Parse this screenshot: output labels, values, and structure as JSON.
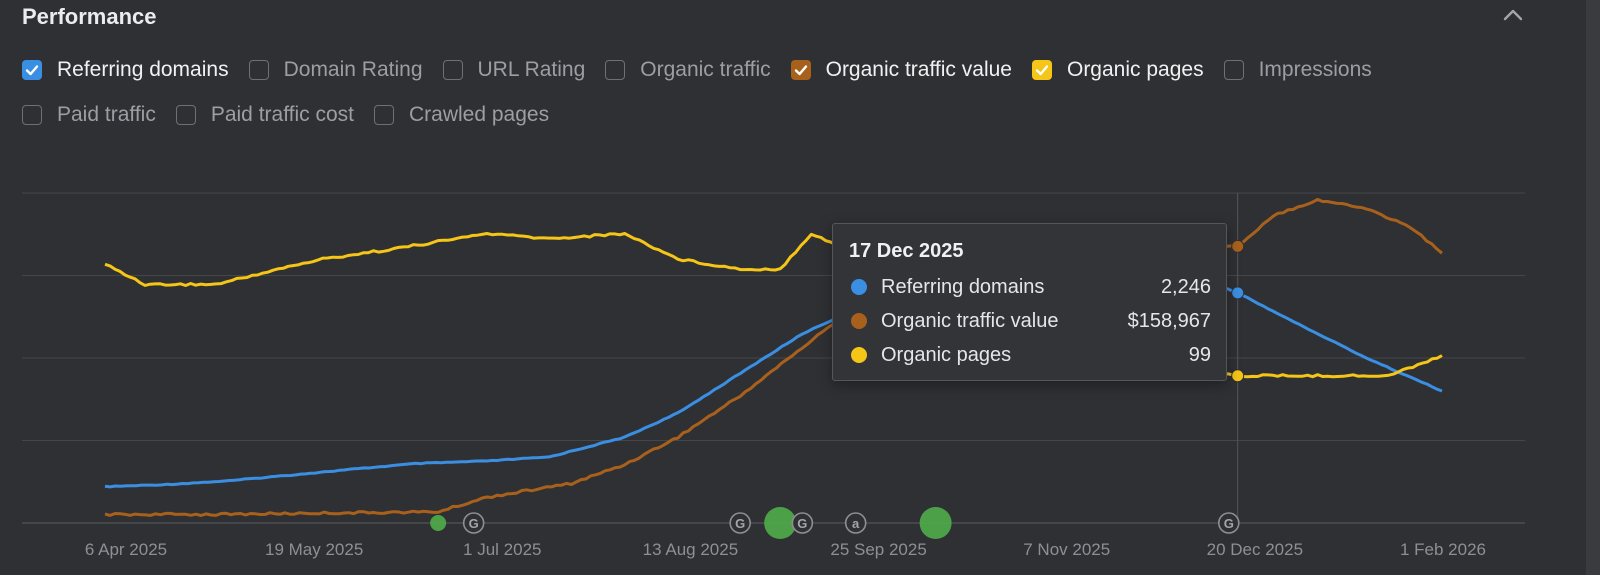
{
  "header": {
    "title": "Performance"
  },
  "icons": {
    "collapse": "chevron-up-icon",
    "check": "checkmark-icon",
    "google_update": "google-g-icon",
    "annotation": "at-sign-icon",
    "event": "green-dot-icon"
  },
  "metrics_row1": [
    {
      "label": "Referring domains",
      "checked": true,
      "color": "#3b8fe3"
    },
    {
      "label": "Domain Rating",
      "checked": false,
      "color": ""
    },
    {
      "label": "URL Rating",
      "checked": false,
      "color": ""
    },
    {
      "label": "Organic traffic",
      "checked": false,
      "color": ""
    },
    {
      "label": "Organic traffic value",
      "checked": true,
      "color": "#a8611c"
    },
    {
      "label": "Organic pages",
      "checked": true,
      "color": "#f5c518"
    },
    {
      "label": "Impressions",
      "checked": false,
      "color": ""
    }
  ],
  "metrics_row2": [
    {
      "label": "Paid traffic",
      "checked": false,
      "color": ""
    },
    {
      "label": "Paid traffic cost",
      "checked": false,
      "color": ""
    },
    {
      "label": "Crawled pages",
      "checked": false,
      "color": ""
    }
  ],
  "tooltip": {
    "date": "17 Dec 2025",
    "rows": [
      {
        "label": "Referring domains",
        "value": "2,246",
        "color": "#3b8fe3"
      },
      {
        "label": "Organic traffic value",
        "value": "$158,967",
        "color": "#a8611c"
      },
      {
        "label": "Organic pages",
        "value": "99",
        "color": "#f5c518"
      }
    ]
  },
  "chart_data": {
    "type": "line",
    "x_labels": [
      "6 Apr 2025",
      "19 May 2025",
      "1 Jul 2025",
      "13 Aug 2025",
      "25 Sep 2025",
      "7 Nov 2025",
      "20 Dec 2025",
      "1 Feb 2026"
    ],
    "x_range": [
      "2025-04-06",
      "2026-02-01"
    ],
    "hover_date": "2025-12-17",
    "grid": true,
    "series": [
      {
        "name": "Referring domains",
        "color": "#3b8fe3",
        "scale": [
          1200,
          2700
        ],
        "points": [
          [
            "2025-04-06",
            1365
          ],
          [
            "2025-04-20",
            1375
          ],
          [
            "2025-05-04",
            1392
          ],
          [
            "2025-05-19",
            1420
          ],
          [
            "2025-06-01",
            1445
          ],
          [
            "2025-06-15",
            1470
          ],
          [
            "2025-07-01",
            1482
          ],
          [
            "2025-07-15",
            1500
          ],
          [
            "2025-08-01",
            1590
          ],
          [
            "2025-08-13",
            1700
          ],
          [
            "2025-08-27",
            1880
          ],
          [
            "2025-09-10",
            2060
          ],
          [
            "2025-09-25",
            2200
          ],
          [
            "2025-10-10",
            2320
          ],
          [
            "2025-10-25",
            2390
          ],
          [
            "2025-11-07",
            2410
          ],
          [
            "2025-11-20",
            2400
          ],
          [
            "2025-12-05",
            2340
          ],
          [
            "2025-12-17",
            2246
          ],
          [
            "2026-01-01",
            2090
          ],
          [
            "2026-01-15",
            1950
          ],
          [
            "2026-02-01",
            1800
          ]
        ]
      },
      {
        "name": "Organic traffic value",
        "color": "#a8611c",
        "scale": [
          -2000,
          190000
        ],
        "points": [
          [
            "2025-04-06",
            3000
          ],
          [
            "2025-05-01",
            3000
          ],
          [
            "2025-06-01",
            4000
          ],
          [
            "2025-06-20",
            4500
          ],
          [
            "2025-07-01",
            13000
          ],
          [
            "2025-07-20",
            21000
          ],
          [
            "2025-08-01",
            32000
          ],
          [
            "2025-08-13",
            48000
          ],
          [
            "2025-08-27",
            72000
          ],
          [
            "2025-09-10",
            100000
          ],
          [
            "2025-09-25",
            130000
          ],
          [
            "2025-10-10",
            152000
          ],
          [
            "2025-10-25",
            160000
          ],
          [
            "2025-11-10",
            163000
          ],
          [
            "2025-12-01",
            160000
          ],
          [
            "2025-12-17",
            158967
          ],
          [
            "2025-12-25",
            177000
          ],
          [
            "2026-01-04",
            186000
          ],
          [
            "2026-01-15",
            181000
          ],
          [
            "2026-01-25",
            170000
          ],
          [
            "2026-02-01",
            155000
          ]
        ]
      },
      {
        "name": "Organic pages",
        "color": "#f5c518",
        "scale": [
          70,
          135
        ],
        "points": [
          [
            "2025-04-06",
            121
          ],
          [
            "2025-04-15",
            117
          ],
          [
            "2025-05-01",
            117
          ],
          [
            "2025-05-15",
            120
          ],
          [
            "2025-05-25",
            122
          ],
          [
            "2025-06-10",
            124
          ],
          [
            "2025-07-01",
            127
          ],
          [
            "2025-07-15",
            126
          ],
          [
            "2025-08-01",
            127
          ],
          [
            "2025-08-13",
            122
          ],
          [
            "2025-08-27",
            120
          ],
          [
            "2025-09-05",
            120
          ],
          [
            "2025-09-12",
            127
          ],
          [
            "2025-09-25",
            122
          ],
          [
            "2025-10-10",
            120
          ],
          [
            "2025-11-07",
            119
          ],
          [
            "2025-12-05",
            100
          ],
          [
            "2025-12-17",
            99
          ],
          [
            "2026-01-04",
            99
          ],
          [
            "2026-01-20",
            99
          ],
          [
            "2026-02-01",
            103
          ]
        ]
      }
    ]
  },
  "markers": [
    {
      "type": "event",
      "date": "2025-06-20"
    },
    {
      "type": "google_update",
      "date": "2025-06-28",
      "glyph": "G"
    },
    {
      "type": "google_update",
      "date": "2025-08-27",
      "glyph": "G"
    },
    {
      "type": "event",
      "date": "2025-09-05"
    },
    {
      "type": "google_update",
      "date": "2025-09-10",
      "glyph": "G"
    },
    {
      "type": "annotation",
      "date": "2025-09-22",
      "glyph": "a"
    },
    {
      "type": "event",
      "date": "2025-10-10"
    },
    {
      "type": "google_update",
      "date": "2025-12-15",
      "glyph": "G"
    }
  ]
}
